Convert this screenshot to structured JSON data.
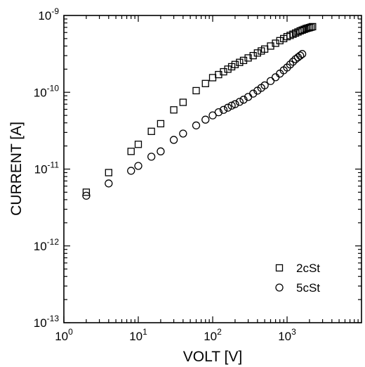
{
  "chart_data": {
    "type": "scatter",
    "xlabel": "VOLT [V]",
    "ylabel": "CURRENT [A]",
    "xscale": "log",
    "yscale": "log",
    "xlim": [
      1,
      10000
    ],
    "ylim": [
      1e-13,
      1e-09
    ],
    "grid": false,
    "legend_position": "bottom-right",
    "x_ticks": [
      {
        "value": 1,
        "mant": "10",
        "exp": "0"
      },
      {
        "value": 10,
        "mant": "10",
        "exp": "1"
      },
      {
        "value": 100,
        "mant": "10",
        "exp": "2"
      },
      {
        "value": 1000,
        "mant": "10",
        "exp": "3"
      }
    ],
    "y_ticks": [
      {
        "value": 1e-13,
        "mant": "10",
        "exp": "-13"
      },
      {
        "value": 1e-12,
        "mant": "10",
        "exp": "-12"
      },
      {
        "value": 1e-11,
        "mant": "10",
        "exp": "-11"
      },
      {
        "value": 1e-10,
        "mant": "10",
        "exp": "-10"
      },
      {
        "value": 1e-09,
        "mant": "10",
        "exp": "-9"
      }
    ],
    "series": [
      {
        "name": "2cSt",
        "marker": "square",
        "x": [
          2,
          4,
          8,
          10,
          15,
          20,
          30,
          40,
          60,
          80,
          100,
          120,
          140,
          160,
          180,
          200,
          230,
          260,
          300,
          350,
          400,
          450,
          500,
          600,
          700,
          800,
          900,
          1000,
          1100,
          1200,
          1300,
          1400,
          1500,
          1600,
          1700,
          1800,
          1900,
          2000,
          2100,
          2200
        ],
        "y": [
          5e-12,
          9e-12,
          1.7e-11,
          2.1e-11,
          3.1e-11,
          3.9e-11,
          5.9e-11,
          7.4e-11,
          1.05e-10,
          1.3e-10,
          1.55e-10,
          1.7e-10,
          1.85e-10,
          2e-10,
          2.15e-10,
          2.3e-10,
          2.45e-10,
          2.6e-10,
          2.8e-10,
          3e-10,
          3.25e-10,
          3.45e-10,
          3.65e-10,
          4e-10,
          4.35e-10,
          4.7e-10,
          5e-10,
          5.3e-10,
          5.5e-10,
          5.7e-10,
          5.9e-10,
          6.1e-10,
          6.3e-10,
          6.45e-10,
          6.6e-10,
          6.75e-10,
          6.85e-10,
          6.95e-10,
          7.05e-10,
          7.15e-10
        ]
      },
      {
        "name": "5cSt",
        "marker": "circle",
        "x": [
          2,
          4,
          8,
          10,
          15,
          20,
          30,
          40,
          60,
          80,
          100,
          120,
          140,
          160,
          180,
          200,
          230,
          260,
          300,
          350,
          400,
          450,
          500,
          600,
          700,
          800,
          900,
          1000,
          1100,
          1200,
          1300,
          1400,
          1500,
          1600
        ],
        "y": [
          4.5e-12,
          6.5e-12,
          9.5e-12,
          1.1e-11,
          1.45e-11,
          1.7e-11,
          2.4e-11,
          2.9e-11,
          3.7e-11,
          4.4e-11,
          5e-11,
          5.5e-11,
          5.9e-11,
          6.3e-11,
          6.7e-11,
          7e-11,
          7.5e-11,
          8e-11,
          8.7e-11,
          9.6e-11,
          1.05e-10,
          1.14e-10,
          1.23e-10,
          1.4e-10,
          1.57e-10,
          1.75e-10,
          1.93e-10,
          2.1e-10,
          2.3e-10,
          2.5e-10,
          2.7e-10,
          2.85e-10,
          3e-10,
          3.15e-10
        ]
      }
    ]
  }
}
